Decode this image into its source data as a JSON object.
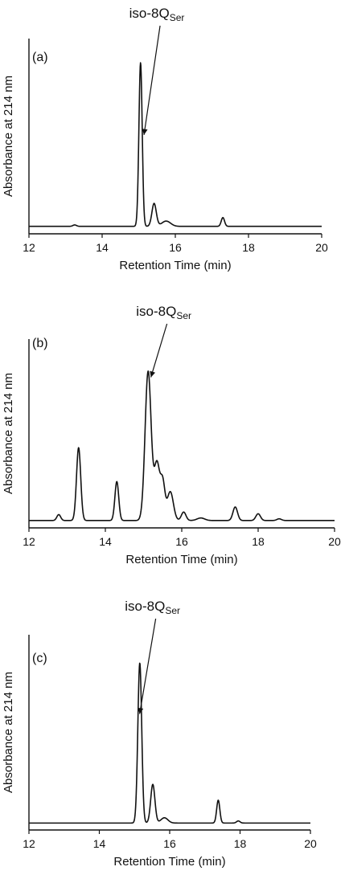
{
  "chart_data": [
    {
      "type": "line",
      "panel_label": "(a)",
      "annotation": {
        "main": "iso-8Q",
        "sub": "Ser",
        "x": 15.1
      },
      "xlabel": "Retention Time (min)",
      "ylabel": "Absorbance at 214 nm",
      "xlim": [
        12,
        20
      ],
      "xticks": [
        "12",
        "14",
        "16",
        "18",
        "20"
      ],
      "ylim": [
        0,
        1
      ],
      "grid": false,
      "baseline": 0.015,
      "peaks": [
        [
          15.05,
          0.93,
          0.045
        ],
        [
          15.42,
          0.13,
          0.06
        ],
        [
          15.75,
          0.03,
          0.12
        ],
        [
          17.3,
          0.05,
          0.045
        ],
        [
          13.25,
          0.008,
          0.05
        ]
      ]
    },
    {
      "type": "line",
      "panel_label": "(b)",
      "annotation": {
        "main": "iso-8Q",
        "sub": "Ser",
        "x": 15.15
      },
      "xlabel": "Retention Time (min)",
      "ylabel": "Absorbance at 214 nm",
      "xlim": [
        12,
        20
      ],
      "xticks": [
        "12",
        "14",
        "16",
        "18",
        "20"
      ],
      "ylim": [
        0,
        1
      ],
      "grid": false,
      "baseline": 0.015,
      "peaks": [
        [
          12.78,
          0.035,
          0.05
        ],
        [
          13.3,
          0.43,
          0.055
        ],
        [
          14.3,
          0.23,
          0.05
        ],
        [
          15.12,
          0.88,
          0.08
        ],
        [
          15.35,
          0.33,
          0.07
        ],
        [
          15.5,
          0.22,
          0.06
        ],
        [
          15.7,
          0.17,
          0.08
        ],
        [
          16.05,
          0.05,
          0.06
        ],
        [
          16.5,
          0.015,
          0.1
        ],
        [
          17.4,
          0.08,
          0.06
        ],
        [
          18.0,
          0.04,
          0.06
        ],
        [
          18.55,
          0.01,
          0.06
        ]
      ]
    },
    {
      "type": "line",
      "panel_label": "(c)",
      "annotation": {
        "main": "iso-8Q",
        "sub": "Ser",
        "x": 15.1
      },
      "xlabel": "Retention Time (min)",
      "ylabel": "Absorbance at 214 nm",
      "xlim": [
        12,
        20
      ],
      "xticks": [
        "12",
        "14",
        "16",
        "18",
        "20"
      ],
      "ylim": [
        0,
        1
      ],
      "grid": false,
      "baseline": 0.012,
      "peaks": [
        [
          15.15,
          0.91,
          0.055
        ],
        [
          15.52,
          0.22,
          0.06
        ],
        [
          15.85,
          0.03,
          0.1
        ],
        [
          17.38,
          0.13,
          0.045
        ],
        [
          17.95,
          0.012,
          0.05
        ]
      ]
    }
  ]
}
